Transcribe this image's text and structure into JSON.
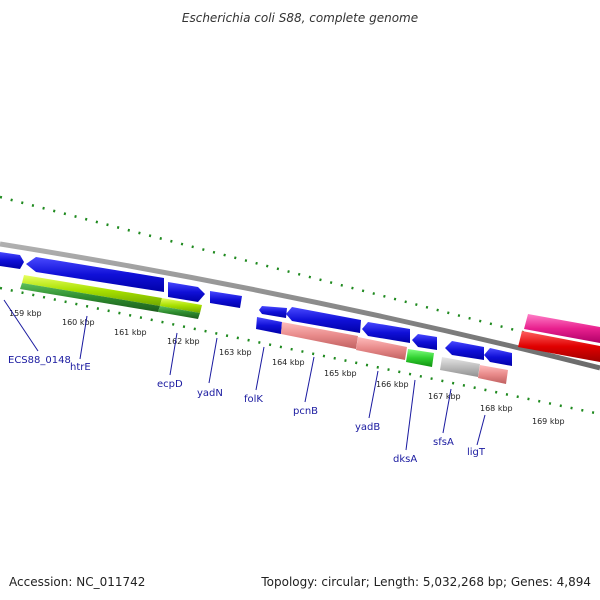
{
  "title": "Escherichia coli S88, complete genome",
  "footer": {
    "accession": "Accession: NC_011742",
    "summary": "Topology: circular; Length: 5,032,268 bp; Genes: 4,894"
  },
  "scale": {
    "ticks": [
      "159 kbp",
      "160 kbp",
      "161 kbp",
      "162 kbp",
      "163 kbp",
      "164 kbp",
      "165 kbp",
      "166 kbp",
      "167 kbp",
      "168 kbp",
      "169 kbp"
    ]
  },
  "genes": [
    "ECS88_0148",
    "htrE",
    "ecpD",
    "yadN",
    "folK",
    "pcnB",
    "yadB",
    "dksA",
    "sfsA",
    "ligT"
  ],
  "colors": {
    "cds_forward": "#1a1ad8",
    "gene_green": "#a8e000",
    "gene_dark_green": "#2e8b2e",
    "gene_salmon": "#e88a8a",
    "gene_gray": "#b8b8b8",
    "gene_pink": "#e8208e",
    "gene_red": "#e00000",
    "backbone": "#888888",
    "ticks": "#1f8a1f"
  }
}
